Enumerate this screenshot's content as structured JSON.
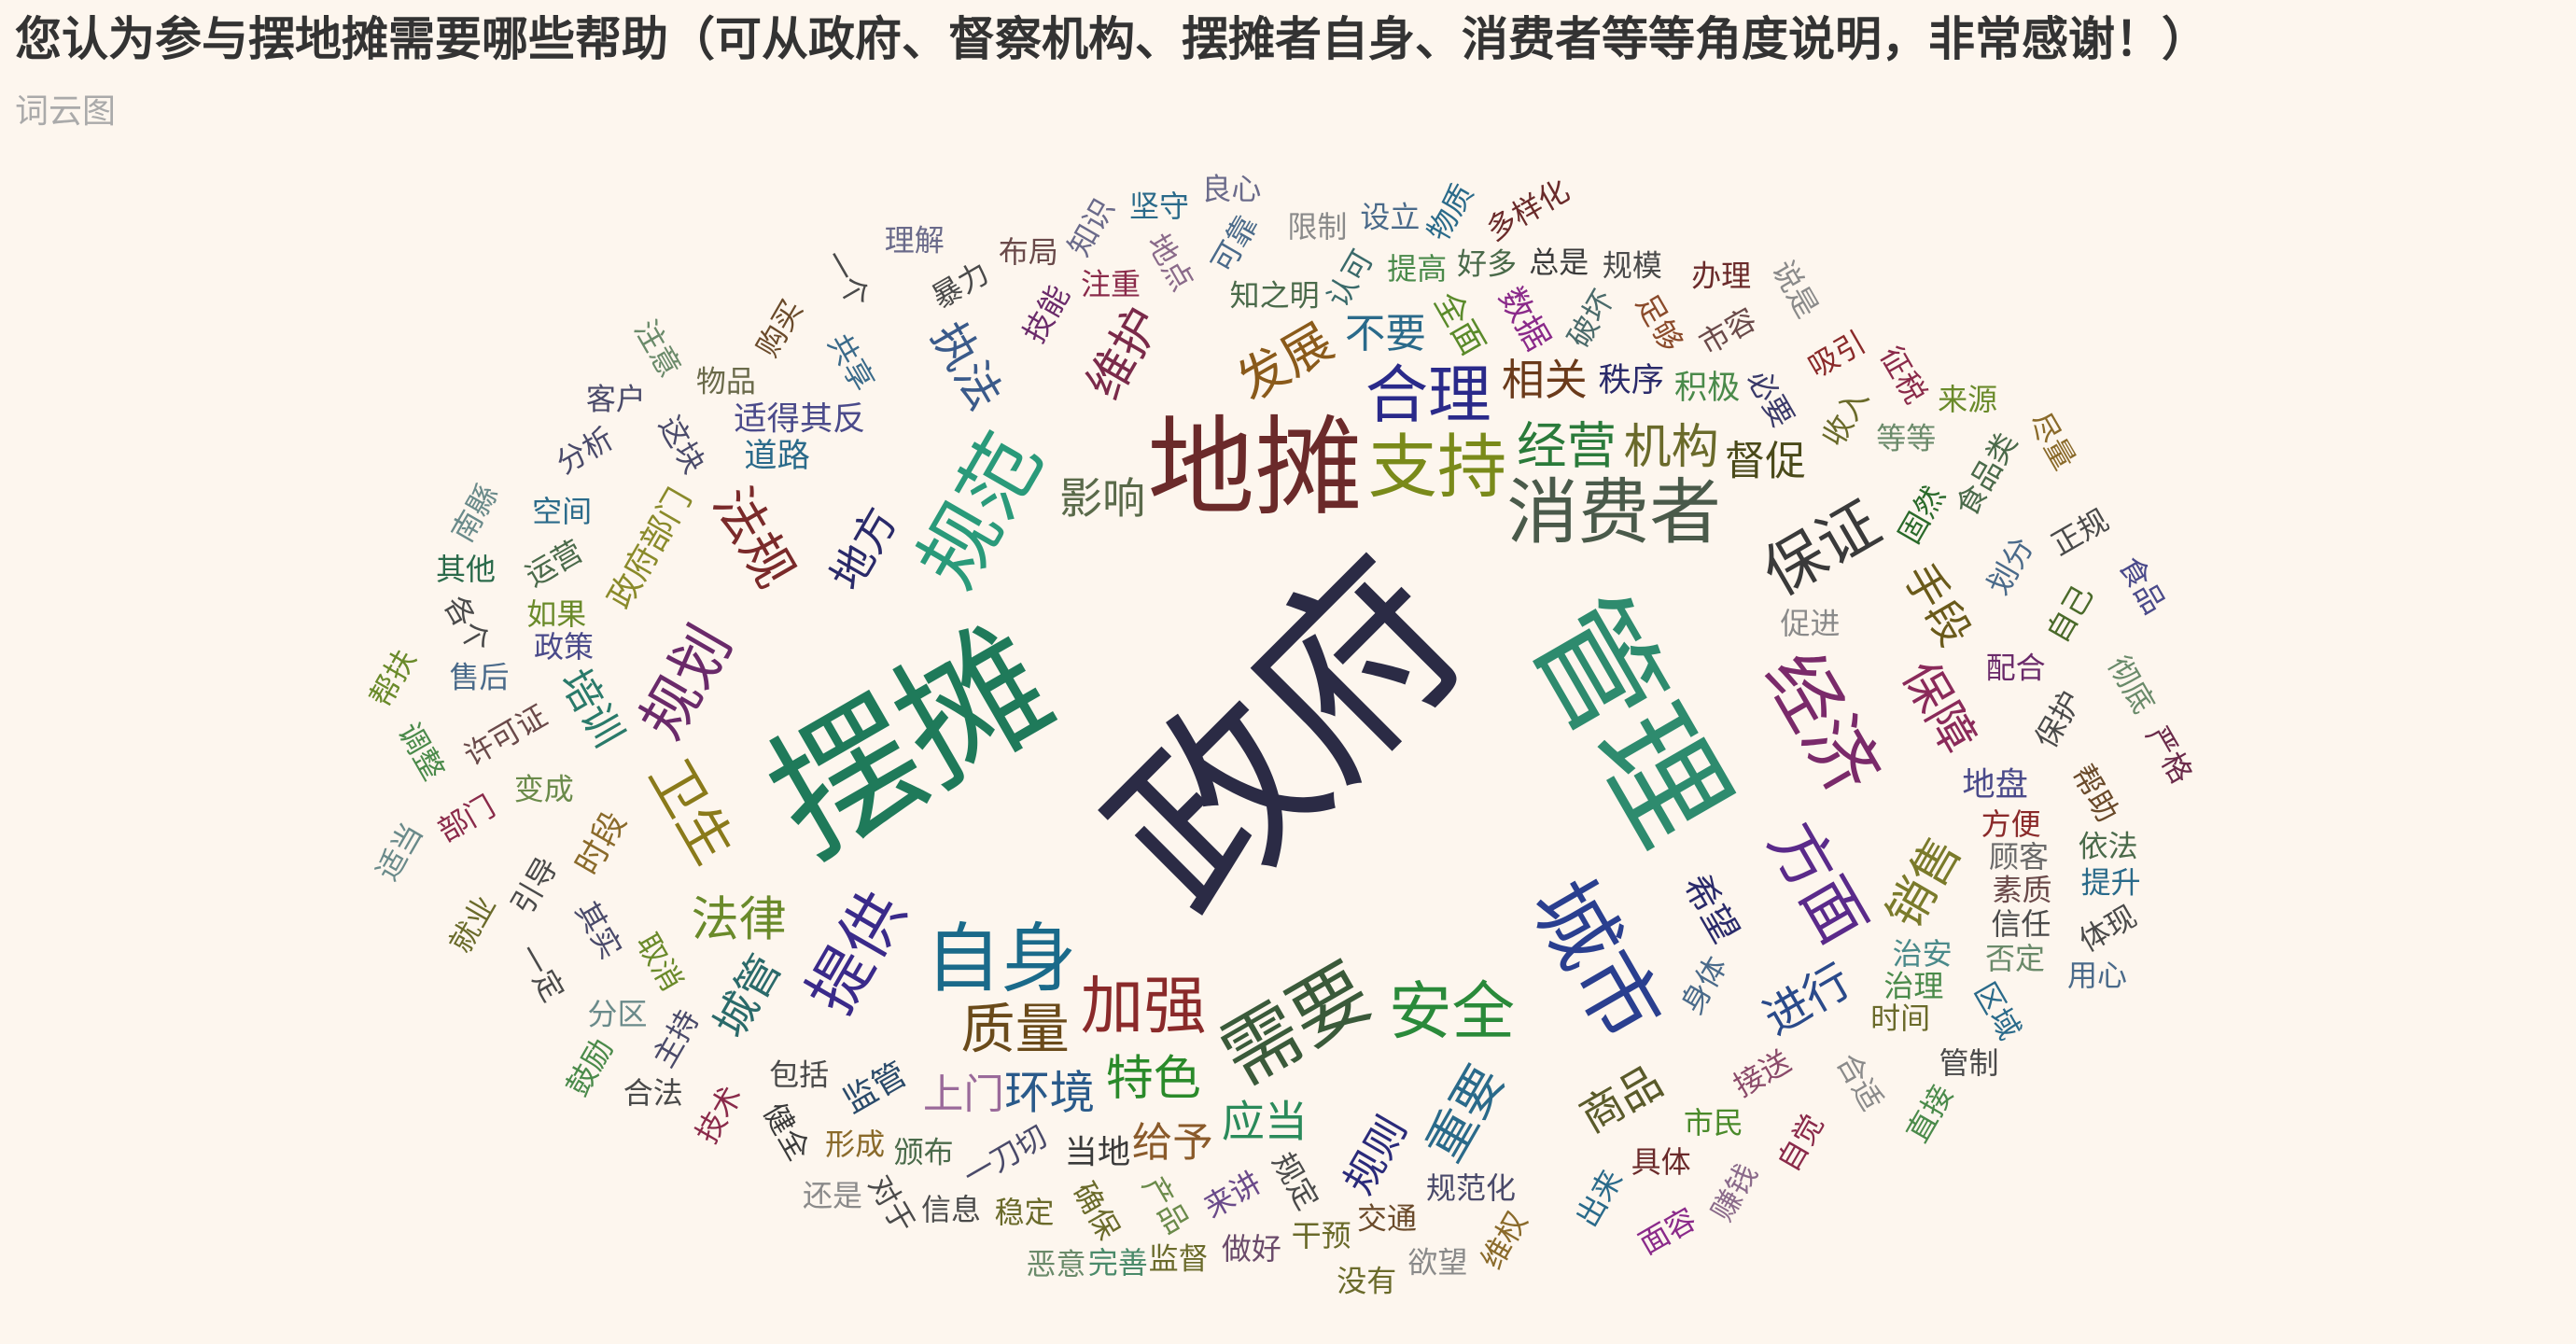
{
  "title": "您认为参与摆地摊需要哪些帮助（可从政府、督察机构、摆摊者自身、消费者等等角度说明，非常感谢！）",
  "subtitle": "词云图",
  "chart_data": {
    "type": "wordcloud",
    "title": "您认为参与摆地摊需要哪些帮助（可从政府、督察机构、摆摊者自身、消费者等等角度说明，非常感谢！）",
    "subtitle": "词云图",
    "words": [
      {
        "text": "政府",
        "weight": 100,
        "color": "#2b2b45"
      },
      {
        "text": "摆摊",
        "weight": 72,
        "color": "#1f7a5a"
      },
      {
        "text": "管理",
        "weight": 62,
        "color": "#2e8b6e"
      },
      {
        "text": "地摊",
        "weight": 52,
        "color": "#6b2a2a"
      },
      {
        "text": "城市",
        "weight": 40,
        "color": "#2a3f8f"
      },
      {
        "text": "规范",
        "weight": 38,
        "color": "#2a9a7a"
      },
      {
        "text": "需要",
        "weight": 37,
        "color": "#3a5a3a"
      },
      {
        "text": "自身",
        "weight": 36,
        "color": "#1a6a8a"
      },
      {
        "text": "经济",
        "weight": 35,
        "color": "#7a2a6a"
      },
      {
        "text": "消费者",
        "weight": 34,
        "color": "#4a5a4a"
      },
      {
        "text": "支持",
        "weight": 33,
        "color": "#7a8a1a"
      },
      {
        "text": "提供",
        "weight": 30,
        "color": "#3a2a8a"
      },
      {
        "text": "加强",
        "weight": 30,
        "color": "#8a2a2a"
      },
      {
        "text": "安全",
        "weight": 30,
        "color": "#2a8a3a"
      },
      {
        "text": "方面",
        "weight": 30,
        "color": "#5a2a8a"
      },
      {
        "text": "合理",
        "weight": 30,
        "color": "#2a2a8a"
      },
      {
        "text": "保证",
        "weight": 29,
        "color": "#3a3a3a"
      },
      {
        "text": "规划",
        "weight": 28,
        "color": "#6a2a6a"
      },
      {
        "text": "卫生",
        "weight": 26,
        "color": "#8a7a1a"
      },
      {
        "text": "质量",
        "weight": 26,
        "color": "#6a4a1a"
      },
      {
        "text": "法规",
        "weight": 25,
        "color": "#7a2a2a"
      },
      {
        "text": "发展",
        "weight": 24,
        "color": "#8a5a1a"
      },
      {
        "text": "经营",
        "weight": 24,
        "color": "#2a7a3a"
      },
      {
        "text": "重要",
        "weight": 24,
        "color": "#2a6a8a"
      },
      {
        "text": "特色",
        "weight": 23,
        "color": "#2a8a2a"
      },
      {
        "text": "维护",
        "weight": 23,
        "color": "#7a2a4a"
      },
      {
        "text": "保障",
        "weight": 23,
        "color": "#8a2a5a"
      },
      {
        "text": "机构",
        "weight": 23,
        "color": "#6a6a2a"
      },
      {
        "text": "法律",
        "weight": 23,
        "color": "#6a8a2a"
      },
      {
        "text": "销售",
        "weight": 23,
        "color": "#7a7a2a"
      },
      {
        "text": "环境",
        "weight": 22,
        "color": "#2a5a8a"
      },
      {
        "text": "进行",
        "weight": 22,
        "color": "#2a4a8a"
      },
      {
        "text": "执法",
        "weight": 22,
        "color": "#3a5a8a"
      },
      {
        "text": "影响",
        "weight": 21,
        "color": "#5a6a4a"
      },
      {
        "text": "应当",
        "weight": 21,
        "color": "#2a8a5a"
      },
      {
        "text": "地方",
        "weight": 21,
        "color": "#2a2a6a"
      },
      {
        "text": "商品",
        "weight": 21,
        "color": "#5a5a2a"
      },
      {
        "text": "相关",
        "weight": 21,
        "color": "#6a3a1a"
      },
      {
        "text": "手段",
        "weight": 21,
        "color": "#6a5a1a"
      },
      {
        "text": "城管",
        "weight": 21,
        "color": "#2a6a6a"
      },
      {
        "text": "督促",
        "weight": 20,
        "color": "#4a4a1a"
      },
      {
        "text": "规则",
        "weight": 20,
        "color": "#2a2a7a"
      },
      {
        "text": "不要",
        "weight": 20,
        "color": "#2a6a8a"
      },
      {
        "text": "上门",
        "weight": 20,
        "color": "#9a6a9a"
      },
      {
        "text": "培训",
        "weight": 20,
        "color": "#2a7a6a"
      },
      {
        "text": "给予",
        "weight": 20,
        "color": "#8a5a2a"
      },
      {
        "text": "政府部门",
        "weight": 17,
        "color": "#8a8a2a"
      },
      {
        "text": "希望",
        "weight": 18,
        "color": "#2a2a6a"
      },
      {
        "text": "秩序",
        "weight": 17,
        "color": "#2a2a6a"
      },
      {
        "text": "道路",
        "weight": 17,
        "color": "#2a6a8a"
      },
      {
        "text": "全面",
        "weight": 17,
        "color": "#5a8a2a"
      },
      {
        "text": "监管",
        "weight": 17,
        "color": "#2a4a6a"
      },
      {
        "text": "当地",
        "weight": 17,
        "color": "#3a3a3a"
      },
      {
        "text": "时段",
        "weight": 17,
        "color": "#8a6a2a"
      },
      {
        "text": "积极",
        "weight": 17,
        "color": "#4a8a4a"
      },
      {
        "text": "地盘",
        "weight": 17,
        "color": "#4a4a8a"
      },
      {
        "text": "数据",
        "weight": 17,
        "color": "#8a2a8a"
      },
      {
        "text": "促进",
        "weight": 16,
        "color": "#8a8a8a"
      },
      {
        "text": "身体",
        "weight": 16,
        "color": "#4a6a8a"
      },
      {
        "text": "规定",
        "weight": 16,
        "color": "#4a4a4a"
      },
      {
        "text": "接送",
        "weight": 16,
        "color": "#8a4a6a"
      },
      {
        "text": "适得其反",
        "weight": 17,
        "color": "#4a4a8a"
      },
      {
        "text": "取消",
        "weight": 16,
        "color": "#6a8a2a"
      },
      {
        "text": "知之明",
        "weight": 16,
        "color": "#4a6a4a"
      },
      {
        "text": "治安",
        "weight": 16,
        "color": "#4a8a8a"
      },
      {
        "text": "固然",
        "weight": 16,
        "color": "#2a6a2a"
      },
      {
        "text": "一刀切",
        "weight": 16,
        "color": "#4a4a6a"
      },
      {
        "text": "技能",
        "weight": 16,
        "color": "#6a2a6a"
      },
      {
        "text": "必要",
        "weight": 16,
        "color": "#3a3a6a"
      },
      {
        "text": "配合",
        "weight": 16,
        "color": "#6a2a6a"
      },
      {
        "text": "方便",
        "weight": 16,
        "color": "#8a2a2a"
      },
      {
        "text": "破坏",
        "weight": 16,
        "color": "#4a6a6a"
      },
      {
        "text": "包括",
        "weight": 16,
        "color": "#4a4a4a"
      },
      {
        "text": "政策",
        "weight": 16,
        "color": "#4a4a8a"
      },
      {
        "text": "共享",
        "weight": 16,
        "color": "#3a6a8a"
      },
      {
        "text": "治理",
        "weight": 16,
        "color": "#4a8a4a"
      },
      {
        "text": "来讲",
        "weight": 16,
        "color": "#6a4a8a"
      },
      {
        "text": "认可",
        "weight": 16,
        "color": "#3a6a6a"
      },
      {
        "text": "变成",
        "weight": 16,
        "color": "#6a8a4a"
      },
      {
        "text": "顾客",
        "weight": 16,
        "color": "#6a6a6a"
      },
      {
        "text": "其实",
        "weight": 16,
        "color": "#4a4a6a"
      },
      {
        "text": "收入",
        "weight": 16,
        "color": "#6a6a2a"
      },
      {
        "text": "如果",
        "weight": 16,
        "color": "#6a8a2a"
      },
      {
        "text": "保护",
        "weight": 16,
        "color": "#4a4a4a"
      },
      {
        "text": "规范化",
        "weight": 16,
        "color": "#4a4a6a"
      },
      {
        "text": "市民",
        "weight": 16,
        "color": "#4a8a2a"
      },
      {
        "text": "这块",
        "weight": 16,
        "color": "#4a4a6a"
      },
      {
        "text": "注重",
        "weight": 16,
        "color": "#8a2a4a"
      },
      {
        "text": "足够",
        "weight": 16,
        "color": "#8a4a2a"
      },
      {
        "text": "划分",
        "weight": 16,
        "color": "#4a6a8a"
      },
      {
        "text": "时间",
        "weight": 16,
        "color": "#6a6a2a"
      },
      {
        "text": "许可证",
        "weight": 16,
        "color": "#6a4a4a"
      },
      {
        "text": "产品",
        "weight": 16,
        "color": "#6a8a4a"
      },
      {
        "text": "颁布",
        "weight": 16,
        "color": "#4a6a4a"
      },
      {
        "text": "素质",
        "weight": 16,
        "color": "#6a4a4a"
      },
      {
        "text": "主持",
        "weight": 16,
        "color": "#4a4a6a"
      },
      {
        "text": "运营",
        "weight": 16,
        "color": "#4a6a4a"
      },
      {
        "text": "提高",
        "weight": 16,
        "color": "#4a8a4a"
      },
      {
        "text": "地点",
        "weight": 16,
        "color": "#8a6a8a"
      },
      {
        "text": "等等",
        "weight": 16,
        "color": "#6a8a6a"
      },
      {
        "text": "具体",
        "weight": 16,
        "color": "#6a2a2a"
      },
      {
        "text": "引导",
        "weight": 16,
        "color": "#4a4a4a"
      },
      {
        "text": "确保",
        "weight": 16,
        "color": "#6a6a2a"
      },
      {
        "text": "信任",
        "weight": 16,
        "color": "#4a4a4a"
      },
      {
        "text": "合适",
        "weight": 16,
        "color": "#8a8a8a"
      },
      {
        "text": "交通",
        "weight": 16,
        "color": "#6a4a2a"
      },
      {
        "text": "市容",
        "weight": 16,
        "color": "#6a4a4a"
      },
      {
        "text": "自己",
        "weight": 16,
        "color": "#4a6a2a"
      },
      {
        "text": "形成",
        "weight": 16,
        "color": "#8a6a2a"
      },
      {
        "text": "可靠",
        "weight": 16,
        "color": "#4a6a8a"
      },
      {
        "text": "帮助",
        "weight": 16,
        "color": "#6a4a2a"
      },
      {
        "text": "暴力",
        "weight": 16,
        "color": "#4a4a4a"
      },
      {
        "text": "好多",
        "weight": 16,
        "color": "#4a6a4a"
      },
      {
        "text": "出来",
        "weight": 16,
        "color": "#2a6a8a"
      },
      {
        "text": "分区",
        "weight": 16,
        "color": "#6a8a8a"
      },
      {
        "text": "物品",
        "weight": 16,
        "color": "#6a6a4a"
      },
      {
        "text": "健全",
        "weight": 16,
        "color": "#3a3a3a"
      },
      {
        "text": "否定",
        "weight": 16,
        "color": "#6a8a6a"
      },
      {
        "text": "售后",
        "weight": 16,
        "color": "#4a6a8a"
      },
      {
        "text": "食品类",
        "weight": 16,
        "color": "#4a6a4a"
      },
      {
        "text": "空间",
        "weight": 16,
        "color": "#2a6a8a"
      },
      {
        "text": "部门",
        "weight": 16,
        "color": "#8a2a4a"
      },
      {
        "text": "区域",
        "weight": 16,
        "color": "#2a6a8a"
      },
      {
        "text": "自觉",
        "weight": 16,
        "color": "#8a2a4a"
      },
      {
        "text": "干预",
        "weight": 16,
        "color": "#6a6a2a"
      },
      {
        "text": "技术",
        "weight": 16,
        "color": "#8a2a4a"
      },
      {
        "text": "吸引",
        "weight": 16,
        "color": "#8a2a2a"
      },
      {
        "text": "稳定",
        "weight": 16,
        "color": "#6a6a2a"
      },
      {
        "text": "一定",
        "weight": 16,
        "color": "#4a4a4a"
      },
      {
        "text": "总是",
        "weight": 16,
        "color": "#3a3a3a"
      },
      {
        "text": "各个",
        "weight": 16,
        "color": "#4a4a4a"
      },
      {
        "text": "购买",
        "weight": 16,
        "color": "#6a4a2a"
      },
      {
        "text": "布局",
        "weight": 16,
        "color": "#6a4a4a"
      },
      {
        "text": "限制",
        "weight": 16,
        "color": "#8a8a8a"
      },
      {
        "text": "彻底",
        "weight": 16,
        "color": "#6a8a6a"
      },
      {
        "text": "依法",
        "weight": 16,
        "color": "#4a6a4a"
      },
      {
        "text": "分析",
        "weight": 16,
        "color": "#4a4a6a"
      },
      {
        "text": "维权",
        "weight": 16,
        "color": "#8a6a2a"
      },
      {
        "text": "做好",
        "weight": 16,
        "color": "#6a4a6a"
      },
      {
        "text": "信息",
        "weight": 16,
        "color": "#4a4a4a"
      },
      {
        "text": "征税",
        "weight": 16,
        "color": "#8a2a4a"
      },
      {
        "text": "正规",
        "weight": 16,
        "color": "#4a4a4a"
      },
      {
        "text": "规模",
        "weight": 16,
        "color": "#4a4a4a"
      },
      {
        "text": "知识",
        "weight": 16,
        "color": "#6a6a8a"
      },
      {
        "text": "对于",
        "weight": 16,
        "color": "#4a4a4a"
      },
      {
        "text": "提升",
        "weight": 16,
        "color": "#2a6a8a"
      },
      {
        "text": "调整",
        "weight": 16,
        "color": "#4a8a4a"
      },
      {
        "text": "设立",
        "weight": 16,
        "color": "#4a6a8a"
      },
      {
        "text": "监督",
        "weight": 16,
        "color": "#6a6a2a"
      },
      {
        "text": "赚钱",
        "weight": 16,
        "color": "#8a6a8a"
      },
      {
        "text": "合法",
        "weight": 16,
        "color": "#4a4a4a"
      },
      {
        "text": "就业",
        "weight": 16,
        "color": "#6a6a2a"
      },
      {
        "text": "一个",
        "weight": 16,
        "color": "#4a4a4a"
      },
      {
        "text": "管制",
        "weight": 16,
        "color": "#4a4a4a"
      },
      {
        "text": "其他",
        "weight": 16,
        "color": "#2a6a4a"
      },
      {
        "text": "物质",
        "weight": 16,
        "color": "#2a6a8a"
      },
      {
        "text": "体现",
        "weight": 16,
        "color": "#4a4a4a"
      },
      {
        "text": "客户",
        "weight": 16,
        "color": "#4a4a6a"
      },
      {
        "text": "严格",
        "weight": 16,
        "color": "#6a2a4a"
      },
      {
        "text": "办理",
        "weight": 16,
        "color": "#6a2a2a"
      },
      {
        "text": "欲望",
        "weight": 16,
        "color": "#8a8a8a"
      },
      {
        "text": "鼓励",
        "weight": 16,
        "color": "#4a8a4a"
      },
      {
        "text": "来源",
        "weight": 16,
        "color": "#6a8a2a"
      },
      {
        "text": "完善",
        "weight": 16,
        "color": "#4a8a6a"
      },
      {
        "text": "食品",
        "weight": 16,
        "color": "#4a4a8a"
      },
      {
        "text": "直接",
        "weight": 16,
        "color": "#4a8a4a"
      },
      {
        "text": "多样化",
        "weight": 16,
        "color": "#6a2a2a"
      },
      {
        "text": "南縣",
        "weight": 16,
        "color": "#6a8a8a"
      },
      {
        "text": "还是",
        "weight": 16,
        "color": "#8a8a8a"
      },
      {
        "text": "坚守",
        "weight": 16,
        "color": "#2a6a8a"
      },
      {
        "text": "说是",
        "weight": 16,
        "color": "#8a8a8a"
      },
      {
        "text": "面容",
        "weight": 16,
        "color": "#8a2a8a"
      },
      {
        "text": "注意",
        "weight": 16,
        "color": "#6a8a6a"
      },
      {
        "text": "帮扶",
        "weight": 16,
        "color": "#6a8a2a"
      },
      {
        "text": "没有",
        "weight": 16,
        "color": "#6a6a2a"
      },
      {
        "text": "恶意",
        "weight": 16,
        "color": "#6a8a6a"
      },
      {
        "text": "尽量",
        "weight": 16,
        "color": "#8a6a2a"
      },
      {
        "text": "理解",
        "weight": 16,
        "color": "#6a6a8a"
      },
      {
        "text": "用心",
        "weight": 16,
        "color": "#4a6a8a"
      },
      {
        "text": "适当",
        "weight": 16,
        "color": "#6a8a8a"
      },
      {
        "text": "良心",
        "weight": 16,
        "color": "#6a6a8a"
      }
    ]
  }
}
